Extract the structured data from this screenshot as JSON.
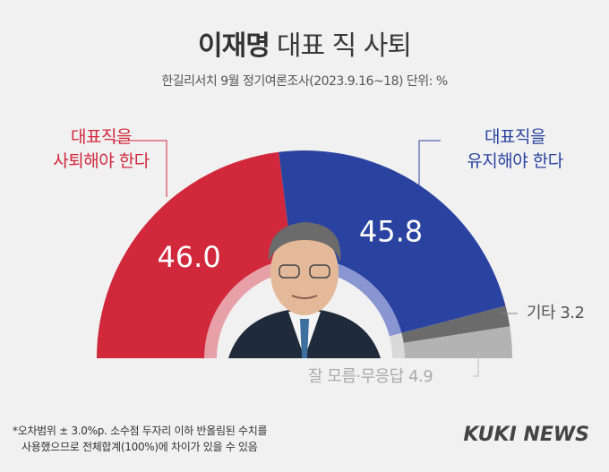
{
  "header": {
    "title_bold": "이재명",
    "title_rest": "대표 직 사퇴",
    "subtitle": "한길리서치 9월 정기여론조사(2023.9.16~18) 단위: %"
  },
  "labels": {
    "resign_line1": "대표직을",
    "resign_line2": "사퇴해야 한다",
    "keep_line1": "대표직을",
    "keep_line2": "유지해야 한다",
    "other": "기타 3.2",
    "dont_know": "잘 모름·무응답 4.9"
  },
  "footnote": {
    "line1": "*오차범위 ± 3.0%p. 소수점 두자리 이하 반올림된 수치를",
    "line2": "사용했으므로 전체합계(100%)에 차이가 있을 수 있음"
  },
  "logo": "KUKI NEWS",
  "colors": {
    "resign": "#d1283b",
    "keep": "#2a43a0",
    "other": "#6b6b6b",
    "dont_know": "#b3b3b3",
    "background": "#f1f1f1"
  },
  "chart_data": {
    "type": "pie",
    "style": "half-donut",
    "categories": [
      "대표직을 사퇴해야 한다",
      "대표직을 유지해야 한다",
      "기타",
      "잘 모름·무응답"
    ],
    "values": [
      46.0,
      45.8,
      3.2,
      4.9
    ],
    "data_labels": [
      "46.0",
      "45.8",
      "",
      ""
    ],
    "unit": "%"
  }
}
